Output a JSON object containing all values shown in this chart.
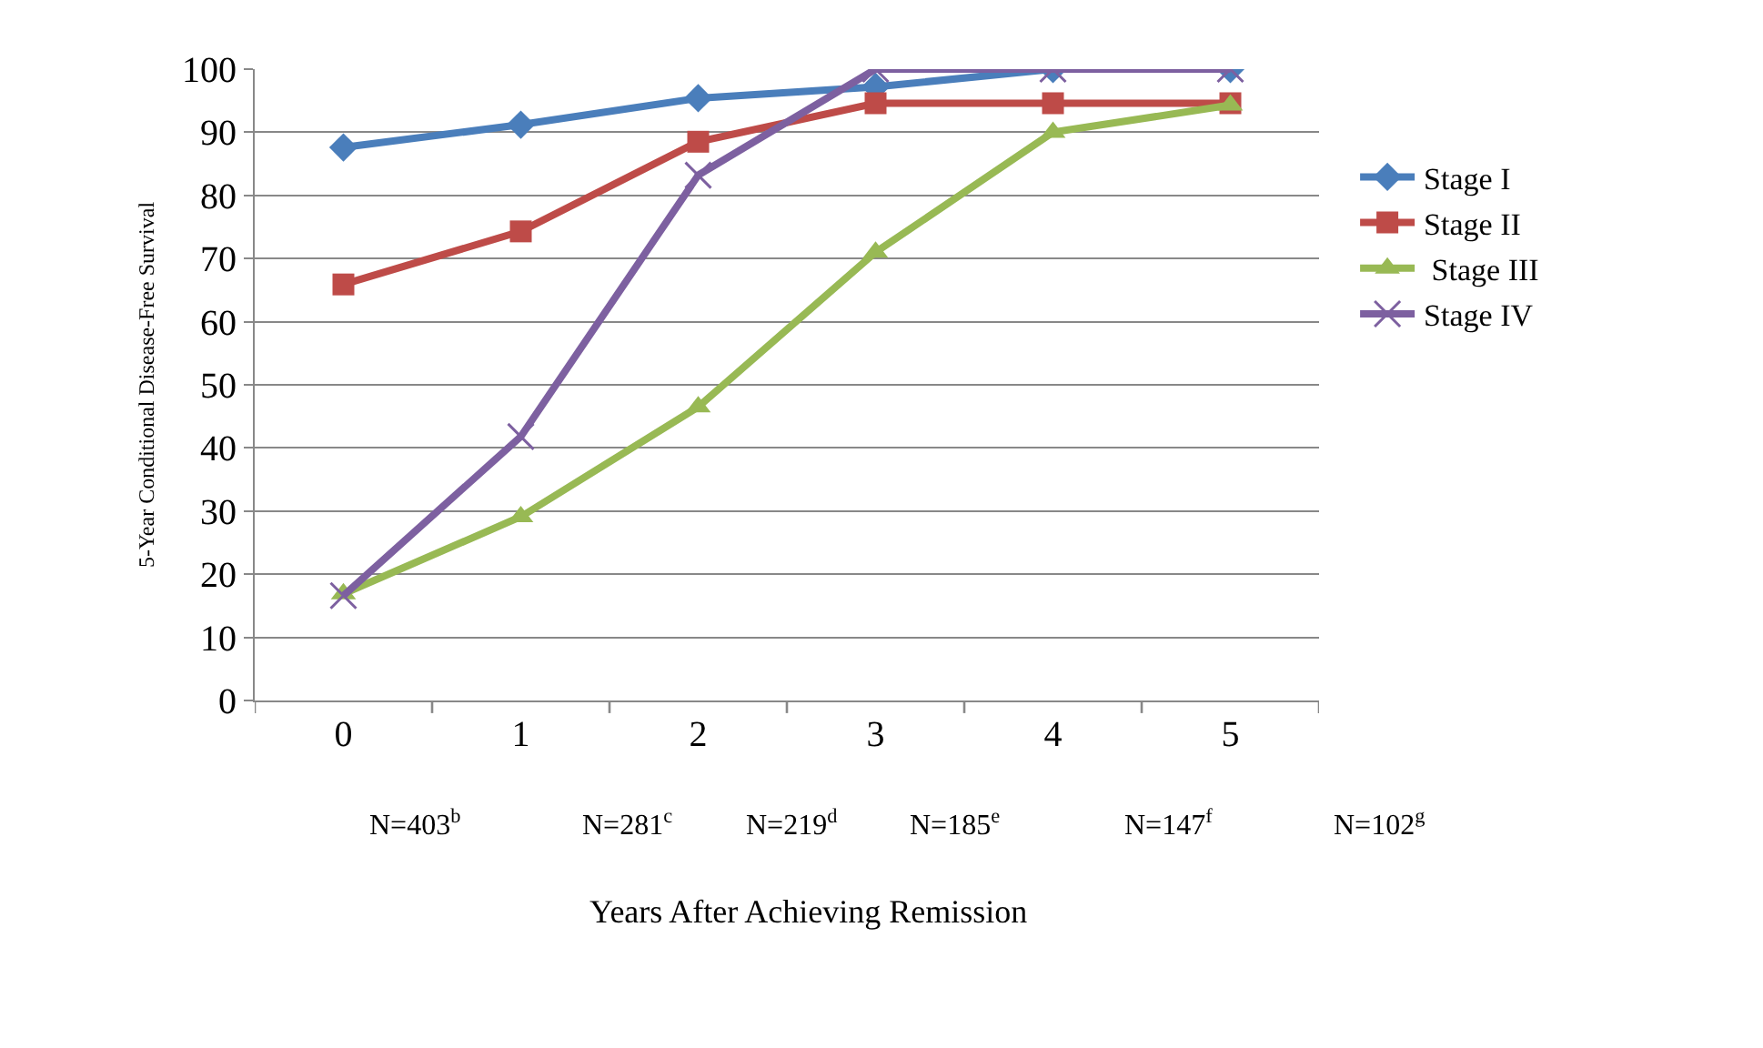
{
  "chart_data": {
    "type": "line",
    "xlabel": "Years After Achieving Remission",
    "ylabel": "5-Year Conditional Disease-Free Survival",
    "categories": [
      "0",
      "1",
      "2",
      "3",
      "4",
      "5"
    ],
    "series": [
      {
        "name": "Stage I",
        "color": "#4a7ebb",
        "marker": "diamond",
        "values": [
          87.6,
          91.2,
          95.4,
          97.2,
          100,
          100
        ]
      },
      {
        "name": "Stage II",
        "color": "#be4b48",
        "marker": "square",
        "values": [
          65.9,
          74.3,
          88.5,
          94.6,
          94.6,
          94.6
        ]
      },
      {
        "name": " Stage III",
        "color": "#98b954",
        "marker": "triangle",
        "values": [
          16.9,
          29.1,
          46.5,
          71,
          90,
          94.3
        ]
      },
      {
        "name": "Stage IV",
        "color": "#7d60a0",
        "marker": "cross",
        "values": [
          16.6,
          41.8,
          83.2,
          100,
          100,
          100
        ]
      }
    ],
    "ylim": [
      0,
      100
    ],
    "yticks": [
      0,
      10,
      20,
      30,
      40,
      50,
      60,
      70,
      80,
      90,
      100
    ],
    "grid": "y",
    "legend": "right",
    "line_style": "solid",
    "annotations": [
      "N=403$^{b}$",
      "N=281$^{c}$",
      "N=219$^{d}$",
      "N=185$^{e}$",
      "N=147$^{f}$",
      "N=102$^{g}$"
    ]
  }
}
